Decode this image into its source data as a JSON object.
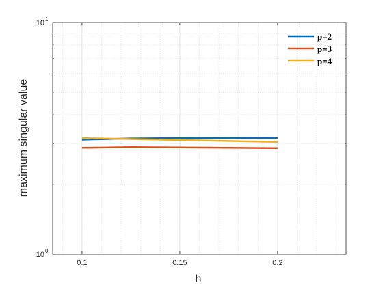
{
  "chart_data": {
    "type": "line",
    "title": "",
    "xlabel": "h",
    "ylabel": "maximum singular value",
    "xlim": [
      0.085,
      0.235
    ],
    "ylim": [
      1,
      10
    ],
    "yscale": "log",
    "grid": true,
    "minor_grid": true,
    "legend_position": "top-right",
    "x_ticks": [
      {
        "value": 0.1,
        "label": "0.1"
      },
      {
        "value": 0.15,
        "label": "0.15"
      },
      {
        "value": 0.2,
        "label": "0.2"
      }
    ],
    "y_ticks": [
      {
        "value": 1,
        "base": "10",
        "exp": "0"
      },
      {
        "value": 10,
        "base": "10",
        "exp": "1"
      }
    ],
    "series": [
      {
        "name": "p=2",
        "color": "#0072BD",
        "x": [
          0.1,
          0.125,
          0.15,
          0.175,
          0.2
        ],
        "y": [
          3.12,
          3.16,
          3.17,
          3.17,
          3.18
        ]
      },
      {
        "name": "p=3",
        "color": "#D95319",
        "x": [
          0.1,
          0.125,
          0.15,
          0.175,
          0.2
        ],
        "y": [
          2.88,
          2.9,
          2.89,
          2.88,
          2.87
        ]
      },
      {
        "name": "p=4",
        "color": "#EDB120",
        "x": [
          0.1,
          0.125,
          0.15,
          0.175,
          0.2
        ],
        "y": [
          3.17,
          3.14,
          3.11,
          3.08,
          3.05
        ]
      }
    ]
  }
}
